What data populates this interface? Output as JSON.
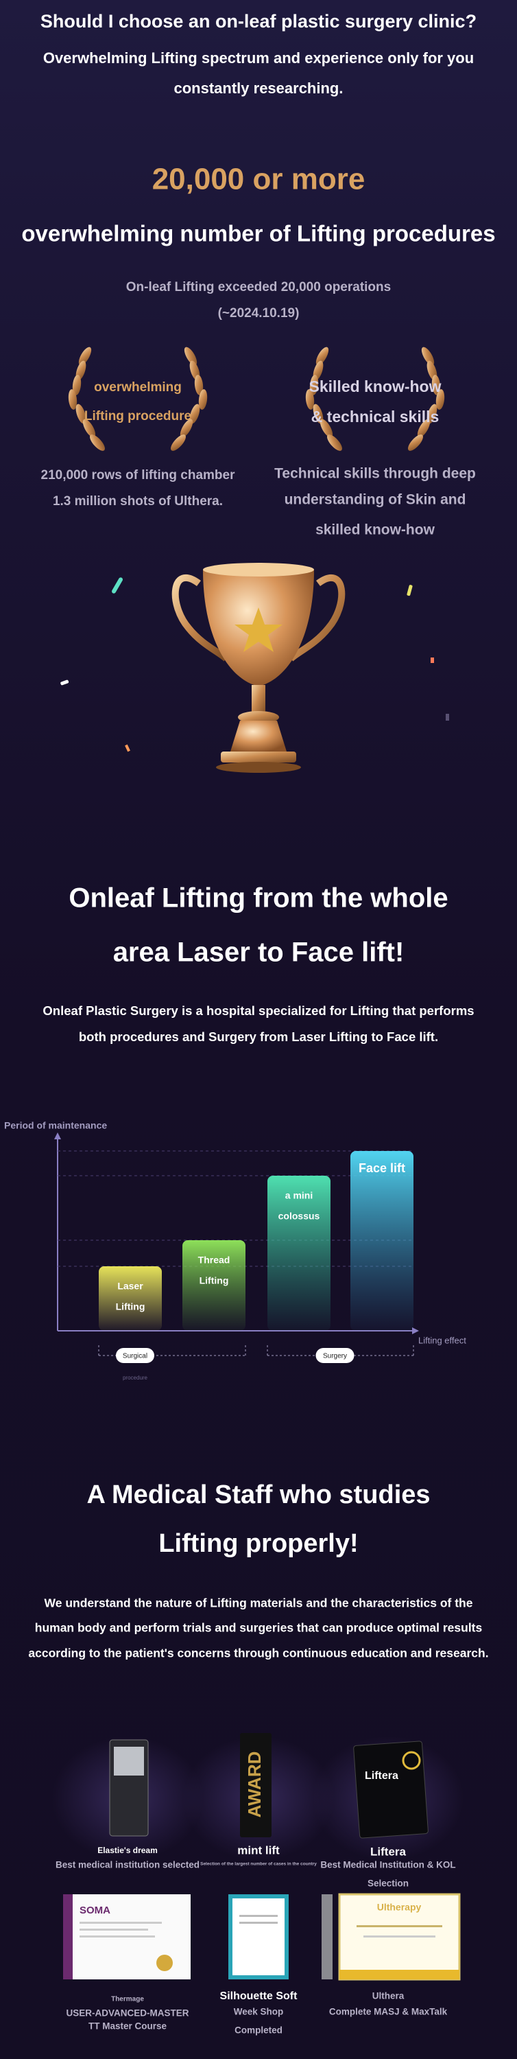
{
  "header": {
    "title": "Should I choose an on-leaf plastic surgery clinic?",
    "subtitle_lines": [
      "Overwhelming Lifting spectrum and experience only for you",
      "constantly researching."
    ]
  },
  "stats": {
    "headline": "20,000 or more",
    "subheadline": "overwhelming number of Lifting procedures",
    "note_lines": [
      "On-leaf Lifting exceeded 20,000 operations",
      "(~2024.10.19)"
    ],
    "badges": [
      {
        "label_lines": [
          "overwhelming",
          "Lifting procedure"
        ],
        "detail_lines": [
          "210,000 rows of lifting chamber",
          "1.3 million shots of Ulthera."
        ]
      },
      {
        "label_lines": [
          "Skilled know-how",
          "& technical skills"
        ],
        "detail_lines": [
          "Technical skills through deep",
          "understanding of Skin and",
          "skilled know-how"
        ]
      }
    ]
  },
  "range_section": {
    "title_lines": [
      "Onleaf Lifting from the whole",
      "area Laser to Face lift!"
    ],
    "description_lines": [
      "Onleaf Plastic Surgery is a hospital specialized for Lifting that performs",
      "both procedures and Surgery from Laser Lifting to Face lift."
    ],
    "diagram": {
      "y_axis_label": "Period of maintenance",
      "x_axis_label": "Lifting effect",
      "bars": [
        {
          "label_lines": [
            "Laser",
            "Lifting"
          ]
        },
        {
          "label_lines": [
            "Thread",
            "Lifting"
          ]
        },
        {
          "label_lines": [
            "a mini",
            "colossus"
          ]
        },
        {
          "label_lines": [
            "Face lift"
          ]
        }
      ],
      "groups": [
        {
          "label": "Surgical",
          "sublabel": "procedure"
        },
        {
          "label": "Surgery"
        }
      ]
    }
  },
  "staff_section": {
    "title_lines": [
      "A Medical Staff who studies",
      "Lifting properly!"
    ],
    "description_lines": [
      "We understand the nature of Lifting materials and the characteristics of the",
      "human body and perform trials and surgeries that can produce optimal results",
      "according to the patient's concerns through continuous education and research."
    ],
    "awards": [
      {
        "name": "Elastie's dream",
        "caption_lines": [
          "Best medical institution selected"
        ]
      },
      {
        "name": "mint lift",
        "caption_lines": [
          "Selection of the largest number of cases in the country"
        ],
        "plaque_text": "AWARD"
      },
      {
        "name": "Liftera",
        "caption_lines": [
          "Best Medical Institution & KOL",
          "Selection"
        ],
        "plaque_text": "Liftera"
      },
      {
        "name": "Thermage",
        "caption_lines": [
          "USER-ADVANCED-MASTER",
          "TT Master Course"
        ],
        "plaque_text": "SOMA"
      },
      {
        "name": "Silhouette Soft",
        "caption_lines": [
          "Week Shop",
          "Completed"
        ]
      },
      {
        "name": "Ulthera",
        "caption_lines": [
          "Complete MASJ & MaxTalk"
        ],
        "plaque_text": "Ultherapy"
      }
    ]
  }
}
